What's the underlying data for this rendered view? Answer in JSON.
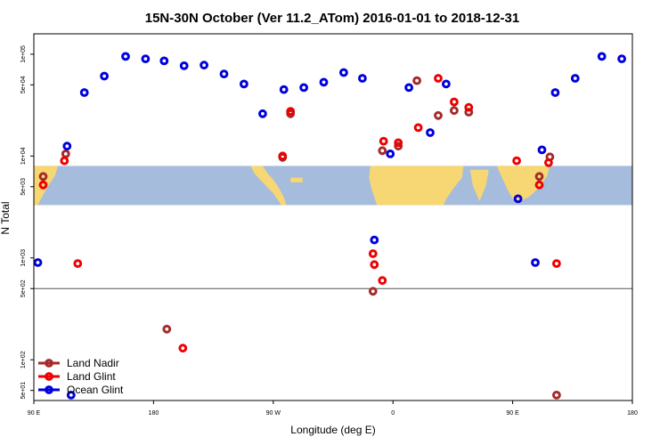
{
  "chart_data": {
    "type": "scatter",
    "title": "15N-30N October (Ver 11.2_ATom)   2016-01-01 to 2018-12-31",
    "xlabel": "Longitude (deg E)",
    "ylabel": "N Total",
    "xlim": [
      90,
      540
    ],
    "ylim_log10": [
      1.6,
      5.2
    ],
    "y_scale": "log",
    "x_ticks": [
      {
        "value": 90,
        "label": "90 E"
      },
      {
        "value": 180,
        "label": "180"
      },
      {
        "value": 270,
        "label": "90 W"
      },
      {
        "value": 360,
        "label": "0"
      },
      {
        "value": 450,
        "label": "90 E"
      },
      {
        "value": 540,
        "label": "180"
      }
    ],
    "y_ticks": [
      {
        "value": 50,
        "label": "5e+01"
      },
      {
        "value": 100,
        "label": "1e+02"
      },
      {
        "value": 500,
        "label": "5e+02"
      },
      {
        "value": 1000,
        "label": "1e+03"
      },
      {
        "value": 5000,
        "label": "5e+03"
      },
      {
        "value": 10000,
        "label": "1e+04"
      },
      {
        "value": 50000,
        "label": "5e+04"
      },
      {
        "value": 100000,
        "label": "1e+05"
      }
    ],
    "reference_line": 500,
    "map_band": {
      "lat_range": "15N-30N",
      "y_top": 8000,
      "y_bottom": 3300
    },
    "legend_position": "bottom-left",
    "series": [
      {
        "name": "Land Nadir",
        "color": "#a52a2a",
        "points": [
          [
            97,
            6300
          ],
          [
            114,
            10500
          ],
          [
            277,
            9700
          ],
          [
            283,
            26000
          ],
          [
            345,
            470
          ],
          [
            352,
            11300
          ],
          [
            364,
            12500
          ],
          [
            378,
            55000
          ],
          [
            394,
            25000
          ],
          [
            406,
            28000
          ],
          [
            417,
            27000
          ],
          [
            470,
            6300
          ],
          [
            478,
            9800
          ],
          [
            483,
            45
          ],
          [
            190,
            200
          ]
        ]
      },
      {
        "name": "Land Glint",
        "color": "#ee0000",
        "points": [
          [
            97,
            5200
          ],
          [
            113,
            9000
          ],
          [
            123,
            880
          ],
          [
            202,
            130
          ],
          [
            277,
            10000
          ],
          [
            283,
            27500
          ],
          [
            345,
            1100
          ],
          [
            346,
            860
          ],
          [
            352,
            600
          ],
          [
            353,
            14000
          ],
          [
            364,
            13500
          ],
          [
            379,
            19000
          ],
          [
            394,
            58000
          ],
          [
            406,
            34000
          ],
          [
            417,
            30000
          ],
          [
            453,
            9000
          ],
          [
            470,
            5200
          ],
          [
            477,
            8600
          ],
          [
            483,
            880
          ]
        ]
      },
      {
        "name": "Ocean Glint",
        "color": "#0000dd",
        "points": [
          [
            93,
            900
          ],
          [
            115,
            12500
          ],
          [
            128,
            42000
          ],
          [
            143,
            61000
          ],
          [
            159,
            95000
          ],
          [
            174,
            90000
          ],
          [
            188,
            86000
          ],
          [
            203,
            77000
          ],
          [
            218,
            78000
          ],
          [
            233,
            64000
          ],
          [
            248,
            51000
          ],
          [
            262,
            26000
          ],
          [
            278,
            45000
          ],
          [
            293,
            47000
          ],
          [
            308,
            53000
          ],
          [
            323,
            66000
          ],
          [
            337,
            58000
          ],
          [
            346,
            1500
          ],
          [
            358,
            10500
          ],
          [
            372,
            47000
          ],
          [
            388,
            17000
          ],
          [
            400,
            51000
          ],
          [
            454,
            3800
          ],
          [
            467,
            900
          ],
          [
            472,
            11500
          ],
          [
            482,
            42000
          ],
          [
            497,
            58000
          ],
          [
            517,
            95000
          ],
          [
            532,
            90000
          ],
          [
            118,
            45
          ]
        ]
      }
    ]
  }
}
